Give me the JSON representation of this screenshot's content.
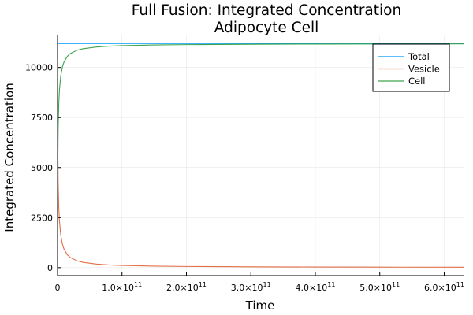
{
  "chart_data": {
    "type": "line",
    "title": [
      "Full Fusion: Integrated Concentration",
      "Adipocyte Cell"
    ],
    "xlabel": "Time",
    "ylabel": "Integrated Concentration",
    "xlim": [
      0,
      630000000000
    ],
    "ylim": [
      -400,
      11600
    ],
    "grid": true,
    "legend_position": "top-right",
    "x_ticks": [
      {
        "value": 0,
        "mantissa": "0",
        "exponent": ""
      },
      {
        "value": 100000000000,
        "mantissa": "1.0×10",
        "exponent": "11"
      },
      {
        "value": 200000000000,
        "mantissa": "2.0×10",
        "exponent": "11"
      },
      {
        "value": 300000000000,
        "mantissa": "3.0×10",
        "exponent": "11"
      },
      {
        "value": 400000000000,
        "mantissa": "4.0×10",
        "exponent": "11"
      },
      {
        "value": 500000000000,
        "mantissa": "5.0×10",
        "exponent": "11"
      },
      {
        "value": 600000000000,
        "mantissa": "6.0×10",
        "exponent": "11"
      }
    ],
    "y_ticks": [
      {
        "value": 0,
        "label": "0"
      },
      {
        "value": 2500,
        "label": "2500"
      },
      {
        "value": 5000,
        "label": "5000"
      },
      {
        "value": 7500,
        "label": "7500"
      },
      {
        "value": 10000,
        "label": "10000"
      }
    ],
    "series": [
      {
        "name": "Total",
        "color": "#009AFA",
        "x": [
          0,
          5000000000,
          20000000000,
          100000000000,
          300000000000,
          630000000000
        ],
        "values": [
          11200,
          11200,
          11200,
          11200,
          11200,
          11200
        ]
      },
      {
        "name": "Vesicle",
        "color": "#E26F46",
        "x": [
          0,
          500000000,
          1000000000,
          2000000000,
          3000000000,
          5000000000,
          7500000000,
          10000000000,
          15000000000,
          20000000000,
          30000000000,
          40000000000,
          60000000000,
          80000000000,
          100000000000,
          150000000000,
          200000000000,
          300000000000,
          400000000000,
          500000000000,
          630000000000
        ],
        "values": [
          11200,
          5800,
          4200,
          2950,
          2300,
          1620,
          1180,
          930,
          650,
          500,
          345,
          262,
          178,
          135,
          110,
          75,
          57,
          40,
          30,
          24,
          19
        ]
      },
      {
        "name": "Cell",
        "color": "#3DA44D",
        "x": [
          0,
          500000000,
          1000000000,
          2000000000,
          3000000000,
          5000000000,
          7500000000,
          10000000000,
          15000000000,
          20000000000,
          30000000000,
          40000000000,
          60000000000,
          80000000000,
          100000000000,
          150000000000,
          200000000000,
          300000000000,
          400000000000,
          500000000000,
          630000000000
        ],
        "values": [
          0,
          5400,
          7000,
          8250,
          8900,
          9580,
          10020,
          10270,
          10550,
          10700,
          10855,
          10938,
          11022,
          11065,
          11090,
          11125,
          11143,
          11160,
          11170,
          11176,
          11181
        ]
      }
    ]
  }
}
